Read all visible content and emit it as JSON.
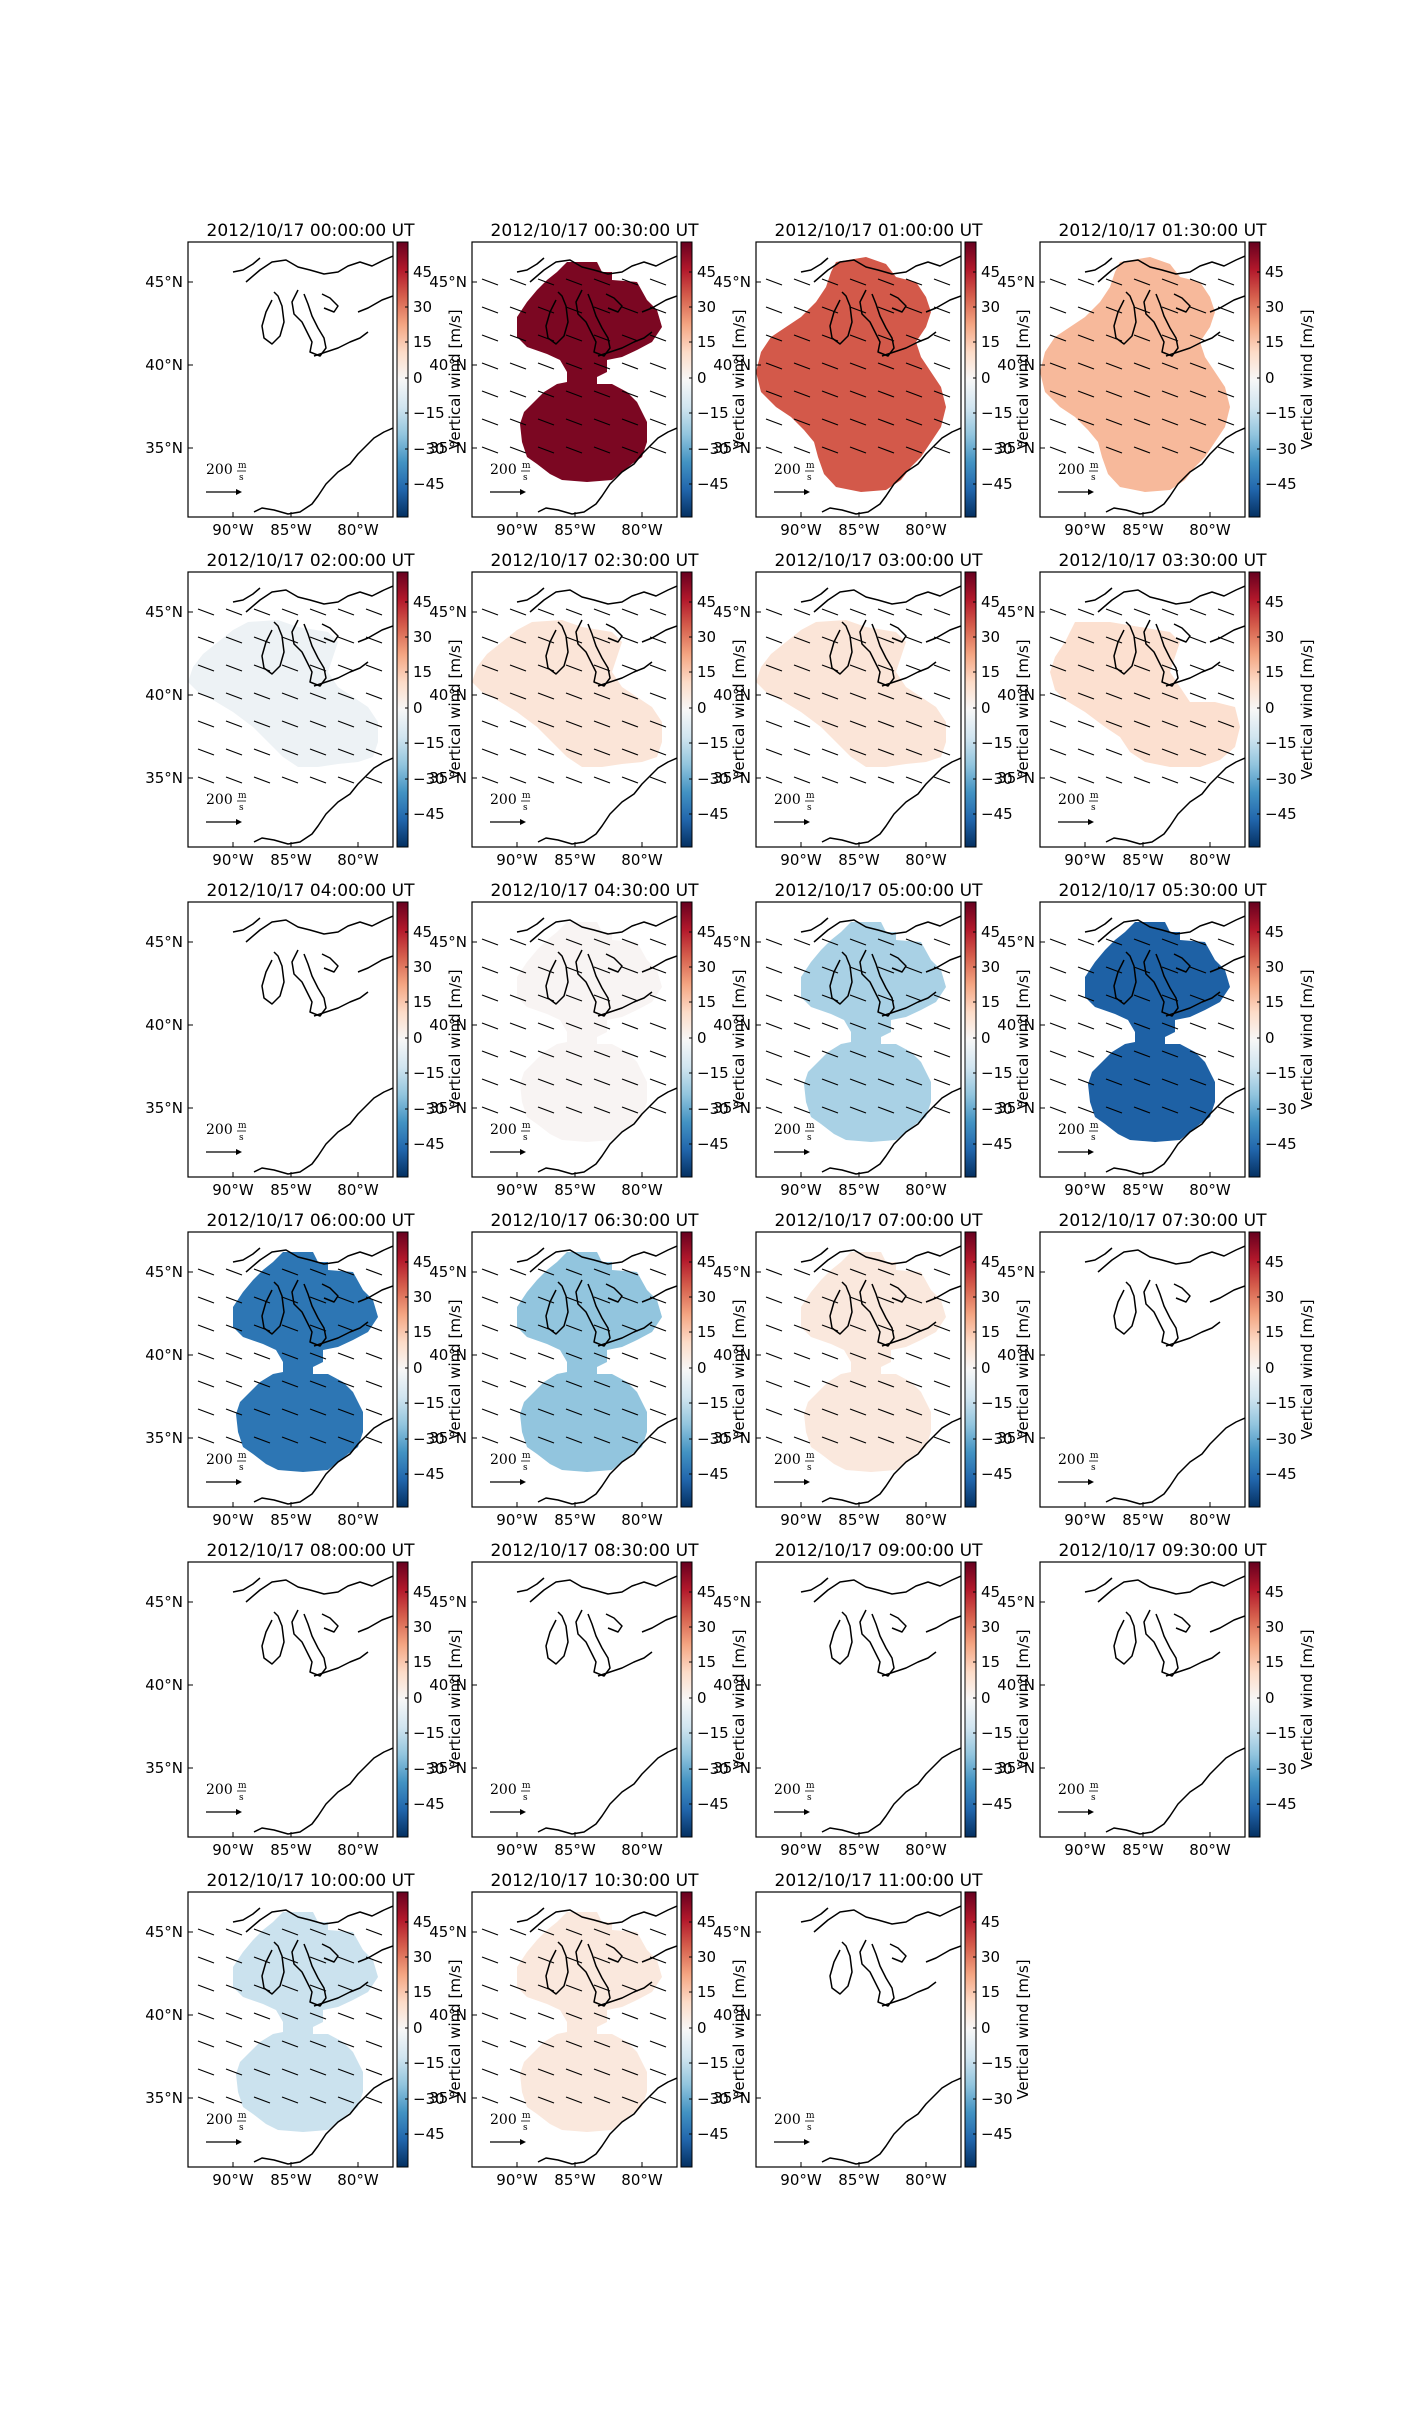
{
  "colorbar": {
    "label": "Vertical wind [m/s]",
    "ticks": [
      "45",
      "30",
      "15",
      "0",
      "−15",
      "−30",
      "−45"
    ],
    "colormap": [
      "#67001f",
      "#b2182b",
      "#d6604d",
      "#f4a582",
      "#fddbc7",
      "#f7f7f7",
      "#d1e5f0",
      "#92c5de",
      "#4393c3",
      "#2166ac",
      "#053061"
    ]
  },
  "axes": {
    "lon_ticks": [
      "90°W",
      "85°W",
      "80°W"
    ],
    "lat_ticks": [
      "45°N",
      "40°N",
      "35°N"
    ]
  },
  "scale_arrow": {
    "value": "200",
    "unit_num": "m",
    "unit_den": "s"
  },
  "panels": [
    {
      "title": "2012/10/17 00:00:00 UT",
      "vertical_wind": null,
      "shape": "none",
      "arrows": false
    },
    {
      "title": "2012/10/17 00:30:00 UT",
      "vertical_wind": 52,
      "shape": "twin",
      "arrows": true
    },
    {
      "title": "2012/10/17 01:00:00 UT",
      "vertical_wind": 34,
      "shape": "large",
      "arrows": true
    },
    {
      "title": "2012/10/17 01:30:00 UT",
      "vertical_wind": 18,
      "shape": "large",
      "arrows": true
    },
    {
      "title": "2012/10/17 02:00:00 UT",
      "vertical_wind": -3,
      "shape": "band",
      "arrows": true
    },
    {
      "title": "2012/10/17 02:30:00 UT",
      "vertical_wind": 7,
      "shape": "band",
      "arrows": true
    },
    {
      "title": "2012/10/17 03:00:00 UT",
      "vertical_wind": 7,
      "shape": "band",
      "arrows": true
    },
    {
      "title": "2012/10/17 03:30:00 UT",
      "vertical_wind": 9,
      "shape": "band2",
      "arrows": true
    },
    {
      "title": "2012/10/17 04:00:00 UT",
      "vertical_wind": null,
      "shape": "none",
      "arrows": false
    },
    {
      "title": "2012/10/17 04:30:00 UT",
      "vertical_wind": 1,
      "shape": "twin",
      "arrows": true
    },
    {
      "title": "2012/10/17 05:00:00 UT",
      "vertical_wind": -18,
      "shape": "twin",
      "arrows": true
    },
    {
      "title": "2012/10/17 05:30:00 UT",
      "vertical_wind": -45,
      "shape": "twin",
      "arrows": true
    },
    {
      "title": "2012/10/17 06:00:00 UT",
      "vertical_wind": -40,
      "shape": "twin",
      "arrows": true
    },
    {
      "title": "2012/10/17 06:30:00 UT",
      "vertical_wind": -22,
      "shape": "twin",
      "arrows": true
    },
    {
      "title": "2012/10/17 07:00:00 UT",
      "vertical_wind": 6,
      "shape": "twin",
      "arrows": true
    },
    {
      "title": "2012/10/17 07:30:00 UT",
      "vertical_wind": null,
      "shape": "none",
      "arrows": false
    },
    {
      "title": "2012/10/17 08:00:00 UT",
      "vertical_wind": null,
      "shape": "none",
      "arrows": false
    },
    {
      "title": "2012/10/17 08:30:00 UT",
      "vertical_wind": null,
      "shape": "none",
      "arrows": false
    },
    {
      "title": "2012/10/17 09:00:00 UT",
      "vertical_wind": null,
      "shape": "none",
      "arrows": false
    },
    {
      "title": "2012/10/17 09:30:00 UT",
      "vertical_wind": null,
      "shape": "none",
      "arrows": false
    },
    {
      "title": "2012/10/17 10:00:00 UT",
      "vertical_wind": -12,
      "shape": "twin",
      "arrows": true
    },
    {
      "title": "2012/10/17 10:30:00 UT",
      "vertical_wind": 6,
      "shape": "twin",
      "arrows": true
    },
    {
      "title": "2012/10/17 11:00:00 UT",
      "vertical_wind": null,
      "shape": "none",
      "arrows": false
    }
  ]
}
